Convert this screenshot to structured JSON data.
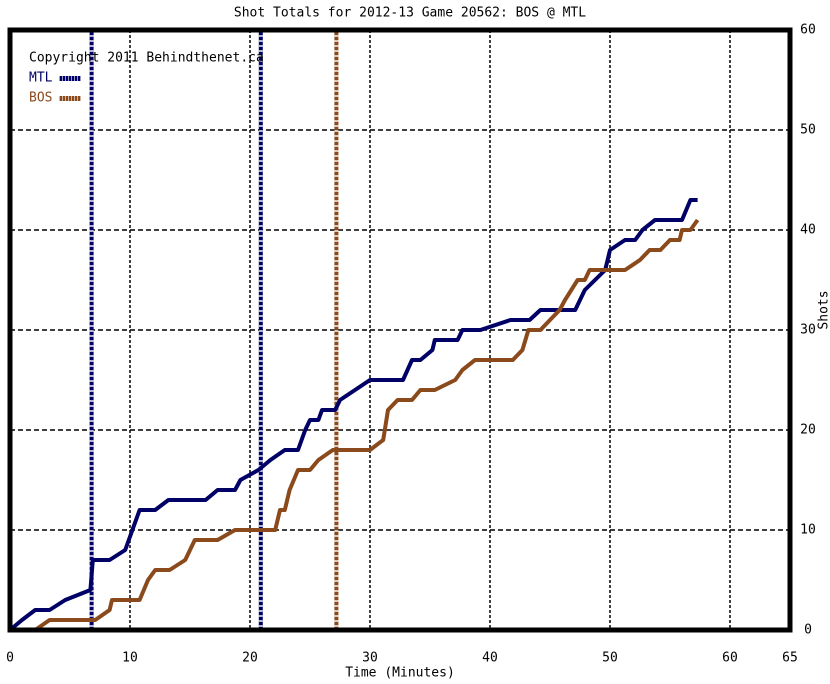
{
  "chart_data": {
    "type": "line",
    "title": "Shot Totals for 2012-13 Game 20562: BOS @ MTL",
    "x_label": "Time (Minutes)",
    "y_label": "Shots",
    "note": "Copyright 2011 Behindthenet.ca",
    "xlim": [
      0,
      65
    ],
    "ylim": [
      0,
      60
    ],
    "xticks": [
      0,
      10,
      20,
      30,
      40,
      50,
      60,
      65
    ],
    "yticks": [
      0,
      10,
      20,
      30,
      40,
      50,
      60
    ],
    "grid": true,
    "legend": "upper left",
    "series": [
      {
        "name": "MTL",
        "color": "#000066",
        "goals": [
          6.8,
          20.9
        ],
        "x": [
          0,
          1,
          2.1,
          3.3,
          4.6,
          6.7,
          6.9,
          8.3,
          9.6,
          10.8,
          12.1,
          13.2,
          16.3,
          17.3,
          18.75,
          19.2,
          20.7,
          21.7,
          22.9,
          24,
          24.6,
          25,
          25.7,
          26,
          27.1,
          27.5,
          28.75,
          30,
          32.75,
          33.5,
          34.2,
          35.2,
          35.4,
          37.3,
          37.7,
          39.2,
          41.7,
          43.3,
          44.2,
          47.1,
          47.9,
          48.75,
          49.6,
          50,
          51.25,
          52.1,
          52.7,
          53.75,
          56,
          56.7,
          57.3
        ],
        "values": [
          0,
          1,
          2,
          2,
          3,
          4,
          7,
          7,
          8,
          12,
          12,
          13,
          13,
          14,
          14,
          15,
          16,
          17,
          18,
          18,
          20,
          21,
          21,
          22,
          22,
          23,
          24,
          25,
          25,
          27,
          27,
          28,
          29,
          29,
          30,
          30,
          31,
          31,
          32,
          32,
          34,
          35,
          36,
          38,
          39,
          39,
          40,
          41,
          41,
          43,
          43
        ]
      },
      {
        "name": "BOS",
        "color": "#8b4a1c",
        "goals": [
          27.2
        ],
        "x": [
          0,
          2.1,
          3.3,
          6.25,
          7.1,
          8.3,
          8.5,
          10.8,
          11.5,
          12.1,
          13.3,
          14.6,
          15,
          15.4,
          17.3,
          18.75,
          22.1,
          22.5,
          22.9,
          23.3,
          24,
          25,
          25.7,
          26.9,
          30,
          31.1,
          31.5,
          32.3,
          33.5,
          34.2,
          35.4,
          37.1,
          37.7,
          38.75,
          41.9,
          42.7,
          43.2,
          44.2,
          45,
          45.8,
          46.25,
          47.3,
          47.9,
          48.3,
          51.25,
          52.5,
          53.3,
          54.2,
          55,
          55.8,
          56,
          56.7,
          57.3
        ],
        "values": [
          0,
          0,
          1,
          1,
          1,
          2,
          3,
          3,
          5,
          6,
          6,
          7,
          8,
          9,
          9,
          10,
          10,
          12,
          12,
          14,
          16,
          16,
          17,
          18,
          18,
          19,
          22,
          23,
          23,
          24,
          24,
          25,
          26,
          27,
          27,
          28,
          30,
          30,
          31,
          32,
          33,
          35,
          35,
          36,
          36,
          37,
          38,
          38,
          39,
          39,
          40,
          40,
          41
        ]
      }
    ]
  }
}
